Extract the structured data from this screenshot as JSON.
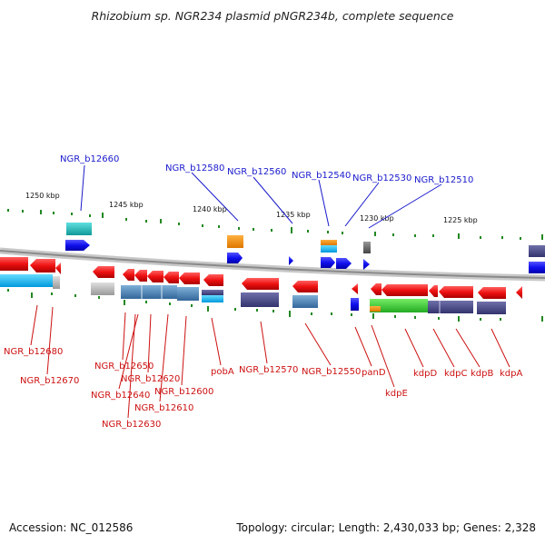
{
  "title": "Rhizobium sp. NGR234 plasmid pNGR234b, complete sequence",
  "footer": {
    "accession": "Accession: NC_012586",
    "summary": "Topology: circular; Length: 2,430,033 bp; Genes: 2,328"
  },
  "colors": {
    "blue_label": "#1a1acc",
    "red_label": "#cc1111",
    "backbone": "#9a9a9a",
    "tick": "#228822"
  },
  "scale_ticks": [
    "1250 kbp",
    "1245 kbp",
    "1240 kbp",
    "1235 kbp",
    "1230 kbp",
    "1225 kbp"
  ],
  "forward_labels": [
    "NGR_b12660",
    "NGR_b12580",
    "NGR_b12560",
    "NGR_b12540",
    "NGR_b12530",
    "NGR_b12510"
  ],
  "reverse_labels": [
    "NGR_b12680",
    "NGR_b12670",
    "NGR_b12650",
    "NGR_b12640",
    "NGR_b12630",
    "NGR_b12620",
    "NGR_b12610",
    "NGR_b12600",
    "pobA",
    "NGR_b12570",
    "NGR_b12550",
    "panD",
    "kdpE",
    "kdpD",
    "kdpC",
    "kdpB",
    "kdpA"
  ]
}
